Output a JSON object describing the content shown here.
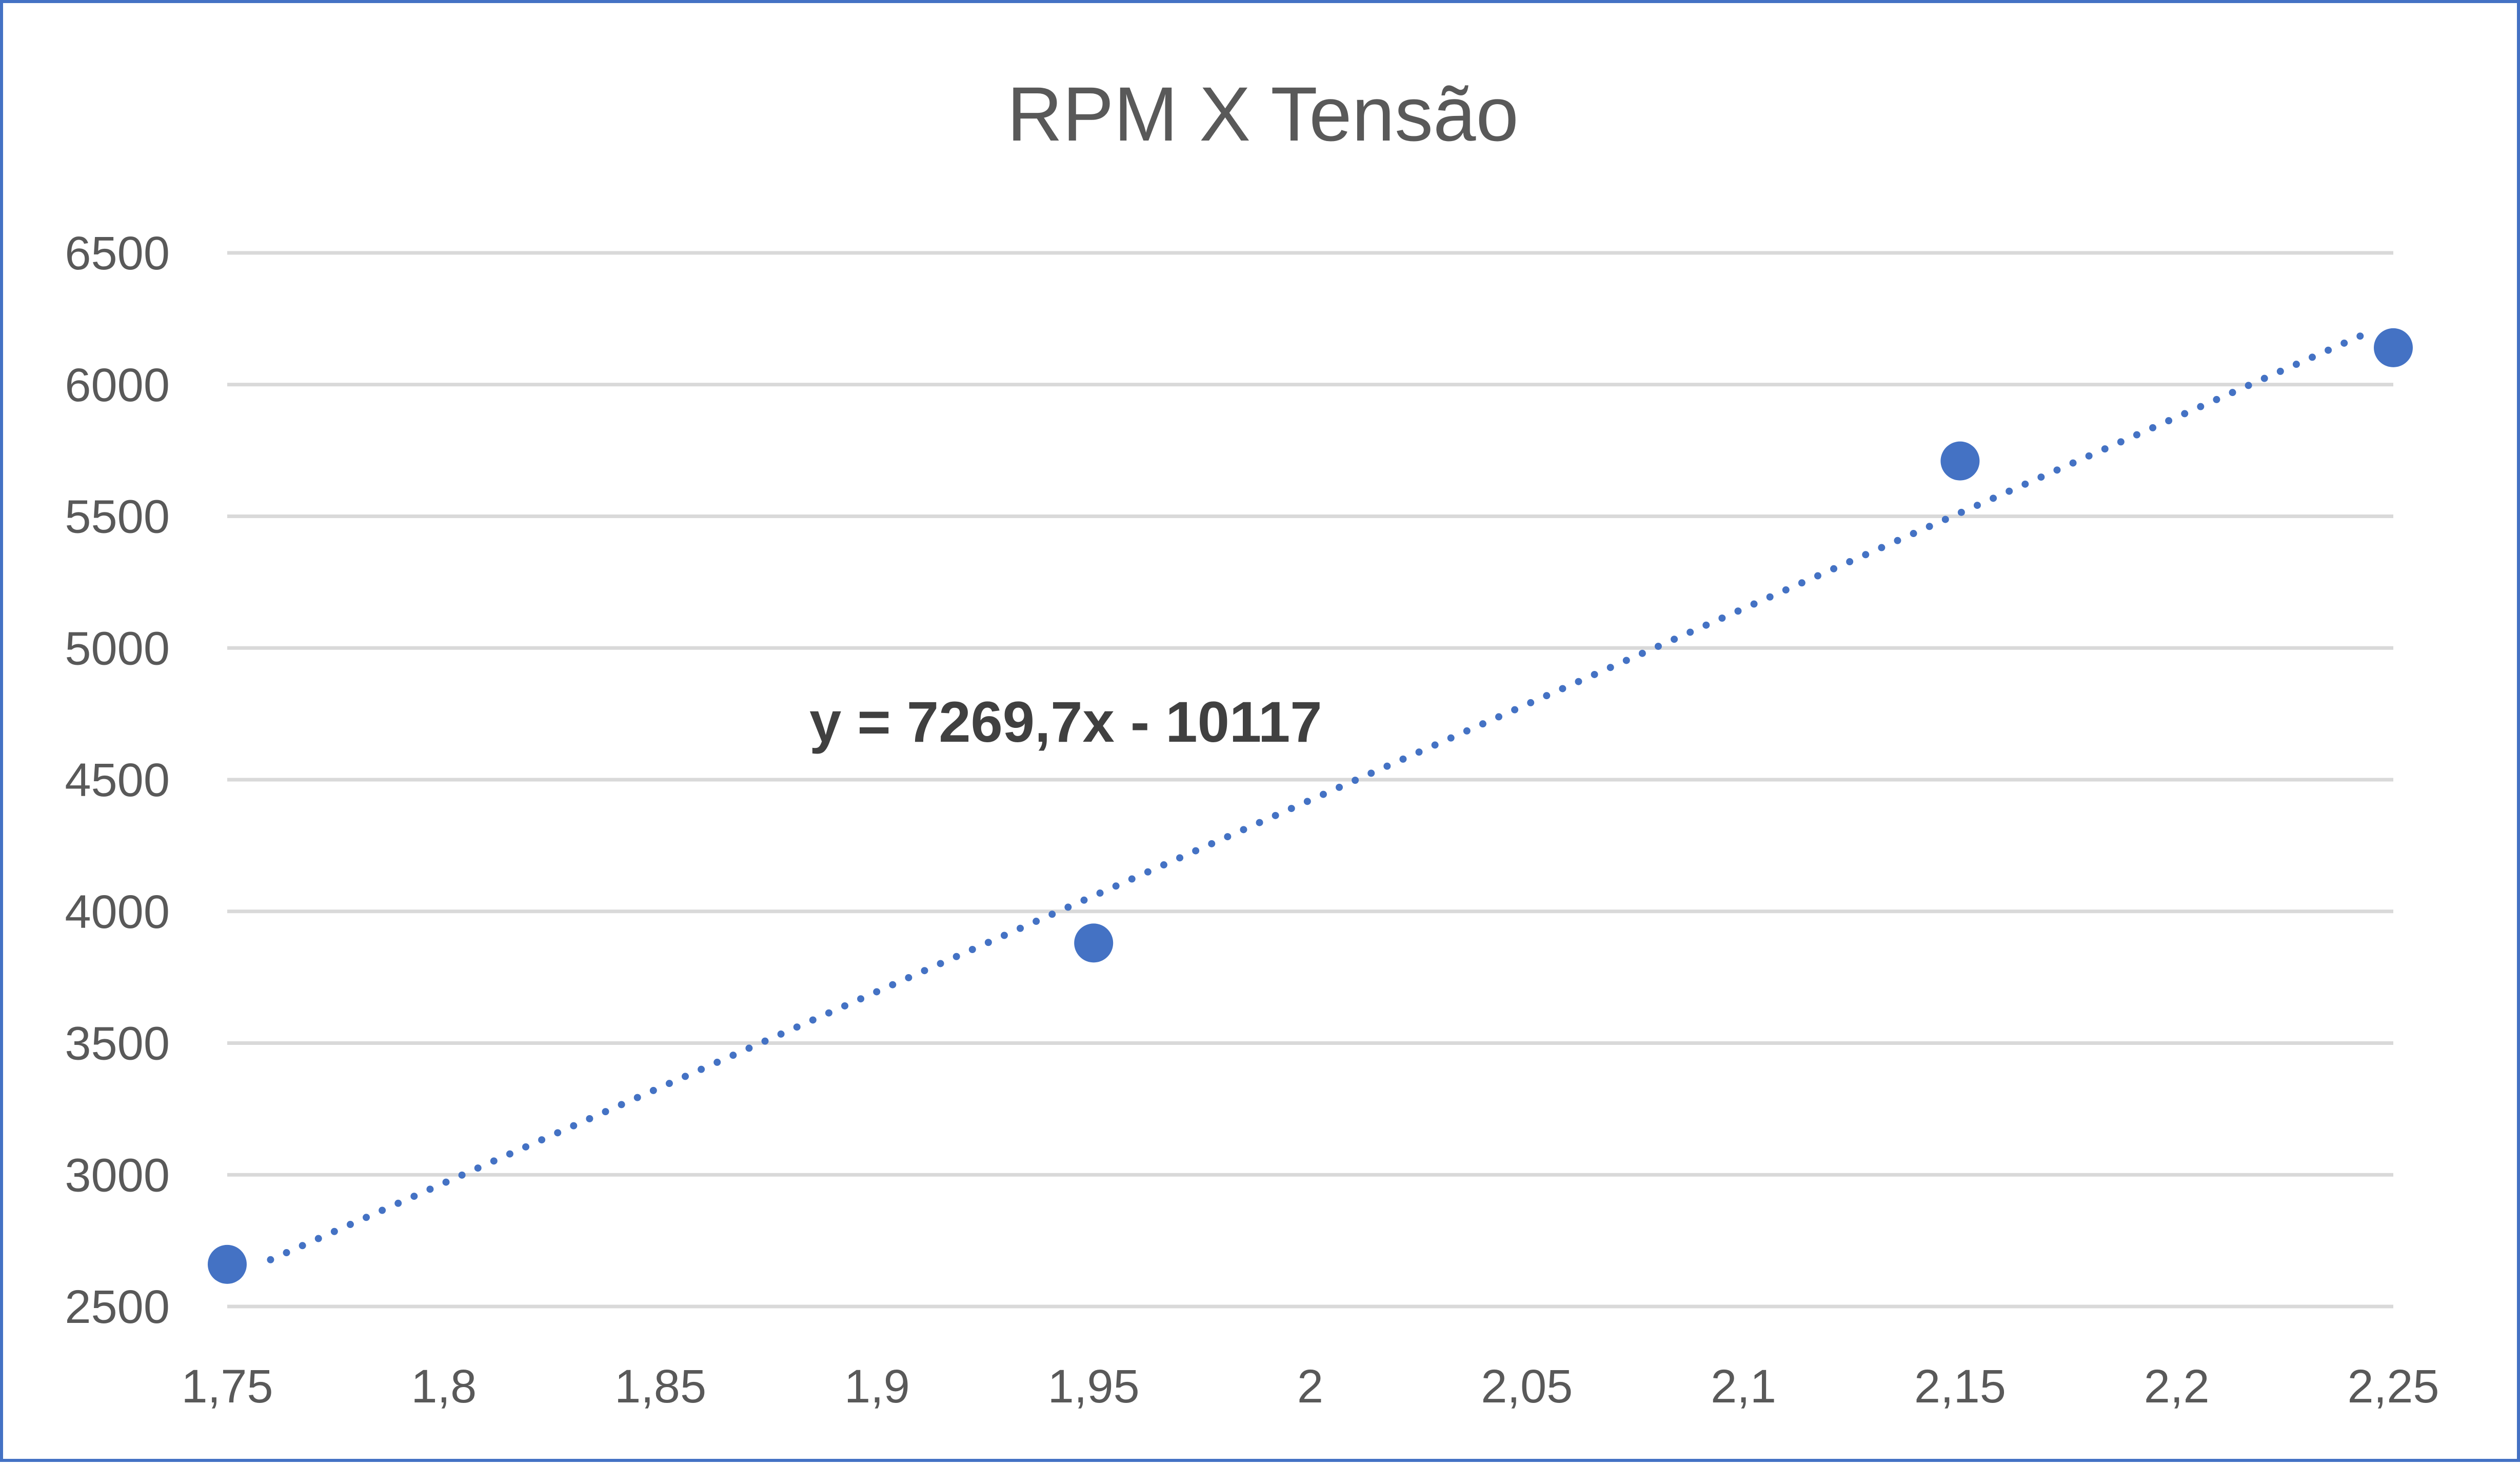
{
  "chart_data": {
    "type": "scatter",
    "title": "RPM X Tensão",
    "xlabel": "",
    "ylabel": "",
    "xlim": [
      1.75,
      2.25
    ],
    "ylim": [
      2500,
      6500
    ],
    "x_ticks": [
      "1,75",
      "1,8",
      "1,85",
      "1,9",
      "1,95",
      "2",
      "2,05",
      "2,1",
      "2,15",
      "2,2",
      "2,25"
    ],
    "x_tick_values": [
      1.75,
      1.8,
      1.85,
      1.9,
      1.95,
      2.0,
      2.05,
      2.1,
      2.15,
      2.2,
      2.25
    ],
    "y_ticks": [
      "2500",
      "3000",
      "3500",
      "4000",
      "4500",
      "5000",
      "5500",
      "6000",
      "6500"
    ],
    "y_tick_values": [
      2500,
      3000,
      3500,
      4000,
      4500,
      5000,
      5500,
      6000,
      6500
    ],
    "grid": "horizontal",
    "legend": "none",
    "series": [
      {
        "points": [
          {
            "x": 1.75,
            "y": 2660
          },
          {
            "x": 1.95,
            "y": 3880
          },
          {
            "x": 2.15,
            "y": 5710
          },
          {
            "x": 2.25,
            "y": 6140
          }
        ],
        "color": "#4472c4"
      }
    ],
    "trendline": {
      "type": "linear",
      "slope": 7269.7,
      "intercept": -10117,
      "equation": "y = 7269,7x - 10117",
      "style": "dotted",
      "color": "#4472c4"
    }
  }
}
